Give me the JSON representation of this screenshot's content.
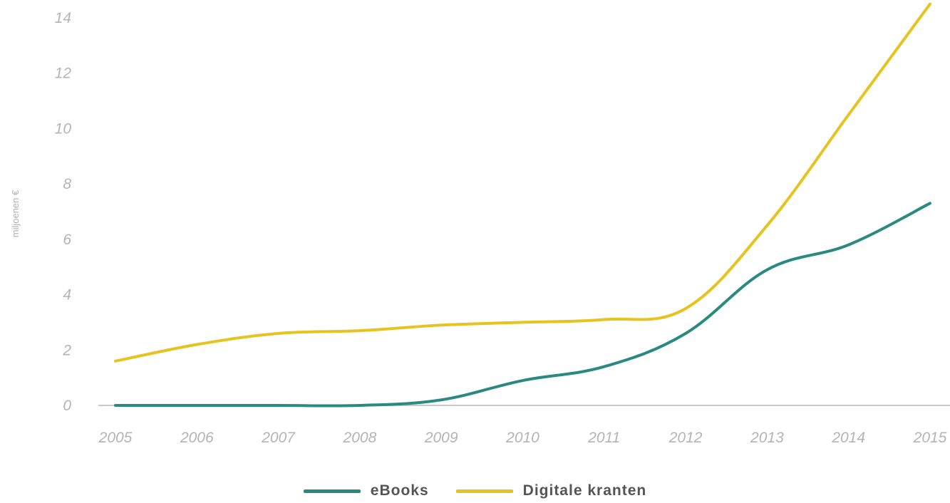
{
  "chart_data": {
    "type": "line",
    "title": "",
    "xlabel": "",
    "ylabel": "miljoenen €",
    "x": [
      "2005",
      "2006",
      "2007",
      "2008",
      "2009",
      "2010",
      "2011",
      "2012",
      "2013",
      "2014",
      "2015"
    ],
    "ylim": [
      0,
      14
    ],
    "yticks": [
      "0",
      "2",
      "4",
      "6",
      "8",
      "10",
      "12",
      "14"
    ],
    "grid": false,
    "legend_position": "bottom-center",
    "series": [
      {
        "name": "eBooks",
        "color": "#2a8a80",
        "values": [
          0,
          0,
          0,
          0,
          0.2,
          0.9,
          1.4,
          2.6,
          4.9,
          5.8,
          7.3
        ]
      },
      {
        "name": "Digitale kranten",
        "color": "#e6c31e",
        "values": [
          1.6,
          2.2,
          2.6,
          2.7,
          2.9,
          3.0,
          3.1,
          3.5,
          6.5,
          10.5,
          14.5
        ]
      }
    ]
  }
}
